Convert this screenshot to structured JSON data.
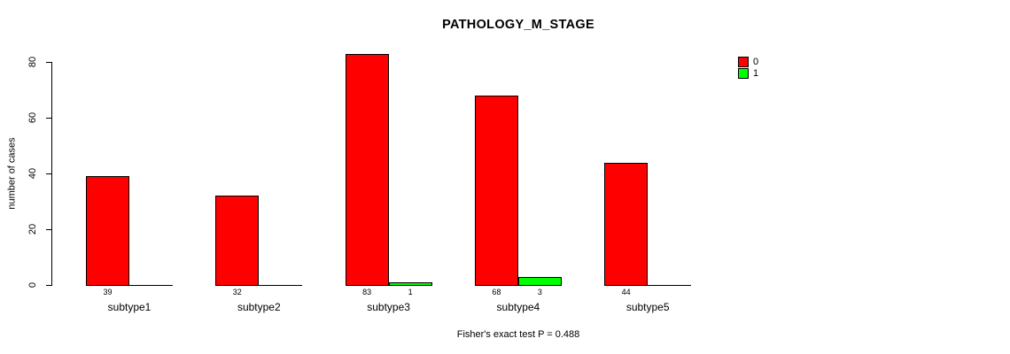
{
  "chart": {
    "title": "PATHOLOGY_M_STAGE",
    "ylabel": "number of cases",
    "footer": "Fisher's exact test P = 0.488",
    "chart_data": {
      "type": "bar",
      "grouped": "beside",
      "title": "PATHOLOGY_M_STAGE",
      "xlabel": "",
      "ylabel": "number of cases",
      "categories": [
        "subtype1",
        "subtype2",
        "subtype3",
        "subtype4",
        "subtype5"
      ],
      "series": [
        {
          "name": "0",
          "color": "#ff0000",
          "values": [
            39,
            32,
            83,
            68,
            44
          ]
        },
        {
          "name": "1",
          "color": "#00ff00",
          "values": [
            0,
            0,
            1,
            3,
            0
          ]
        }
      ],
      "yticks": [
        0,
        20,
        40,
        60,
        80
      ],
      "ylim": [
        0,
        83
      ],
      "grid": false,
      "legend_position": "top-right",
      "bar_value_label_rule": "value shown under each bar when value > 0",
      "annotations": [
        "Fisher's exact test P = 0.488"
      ]
    }
  }
}
